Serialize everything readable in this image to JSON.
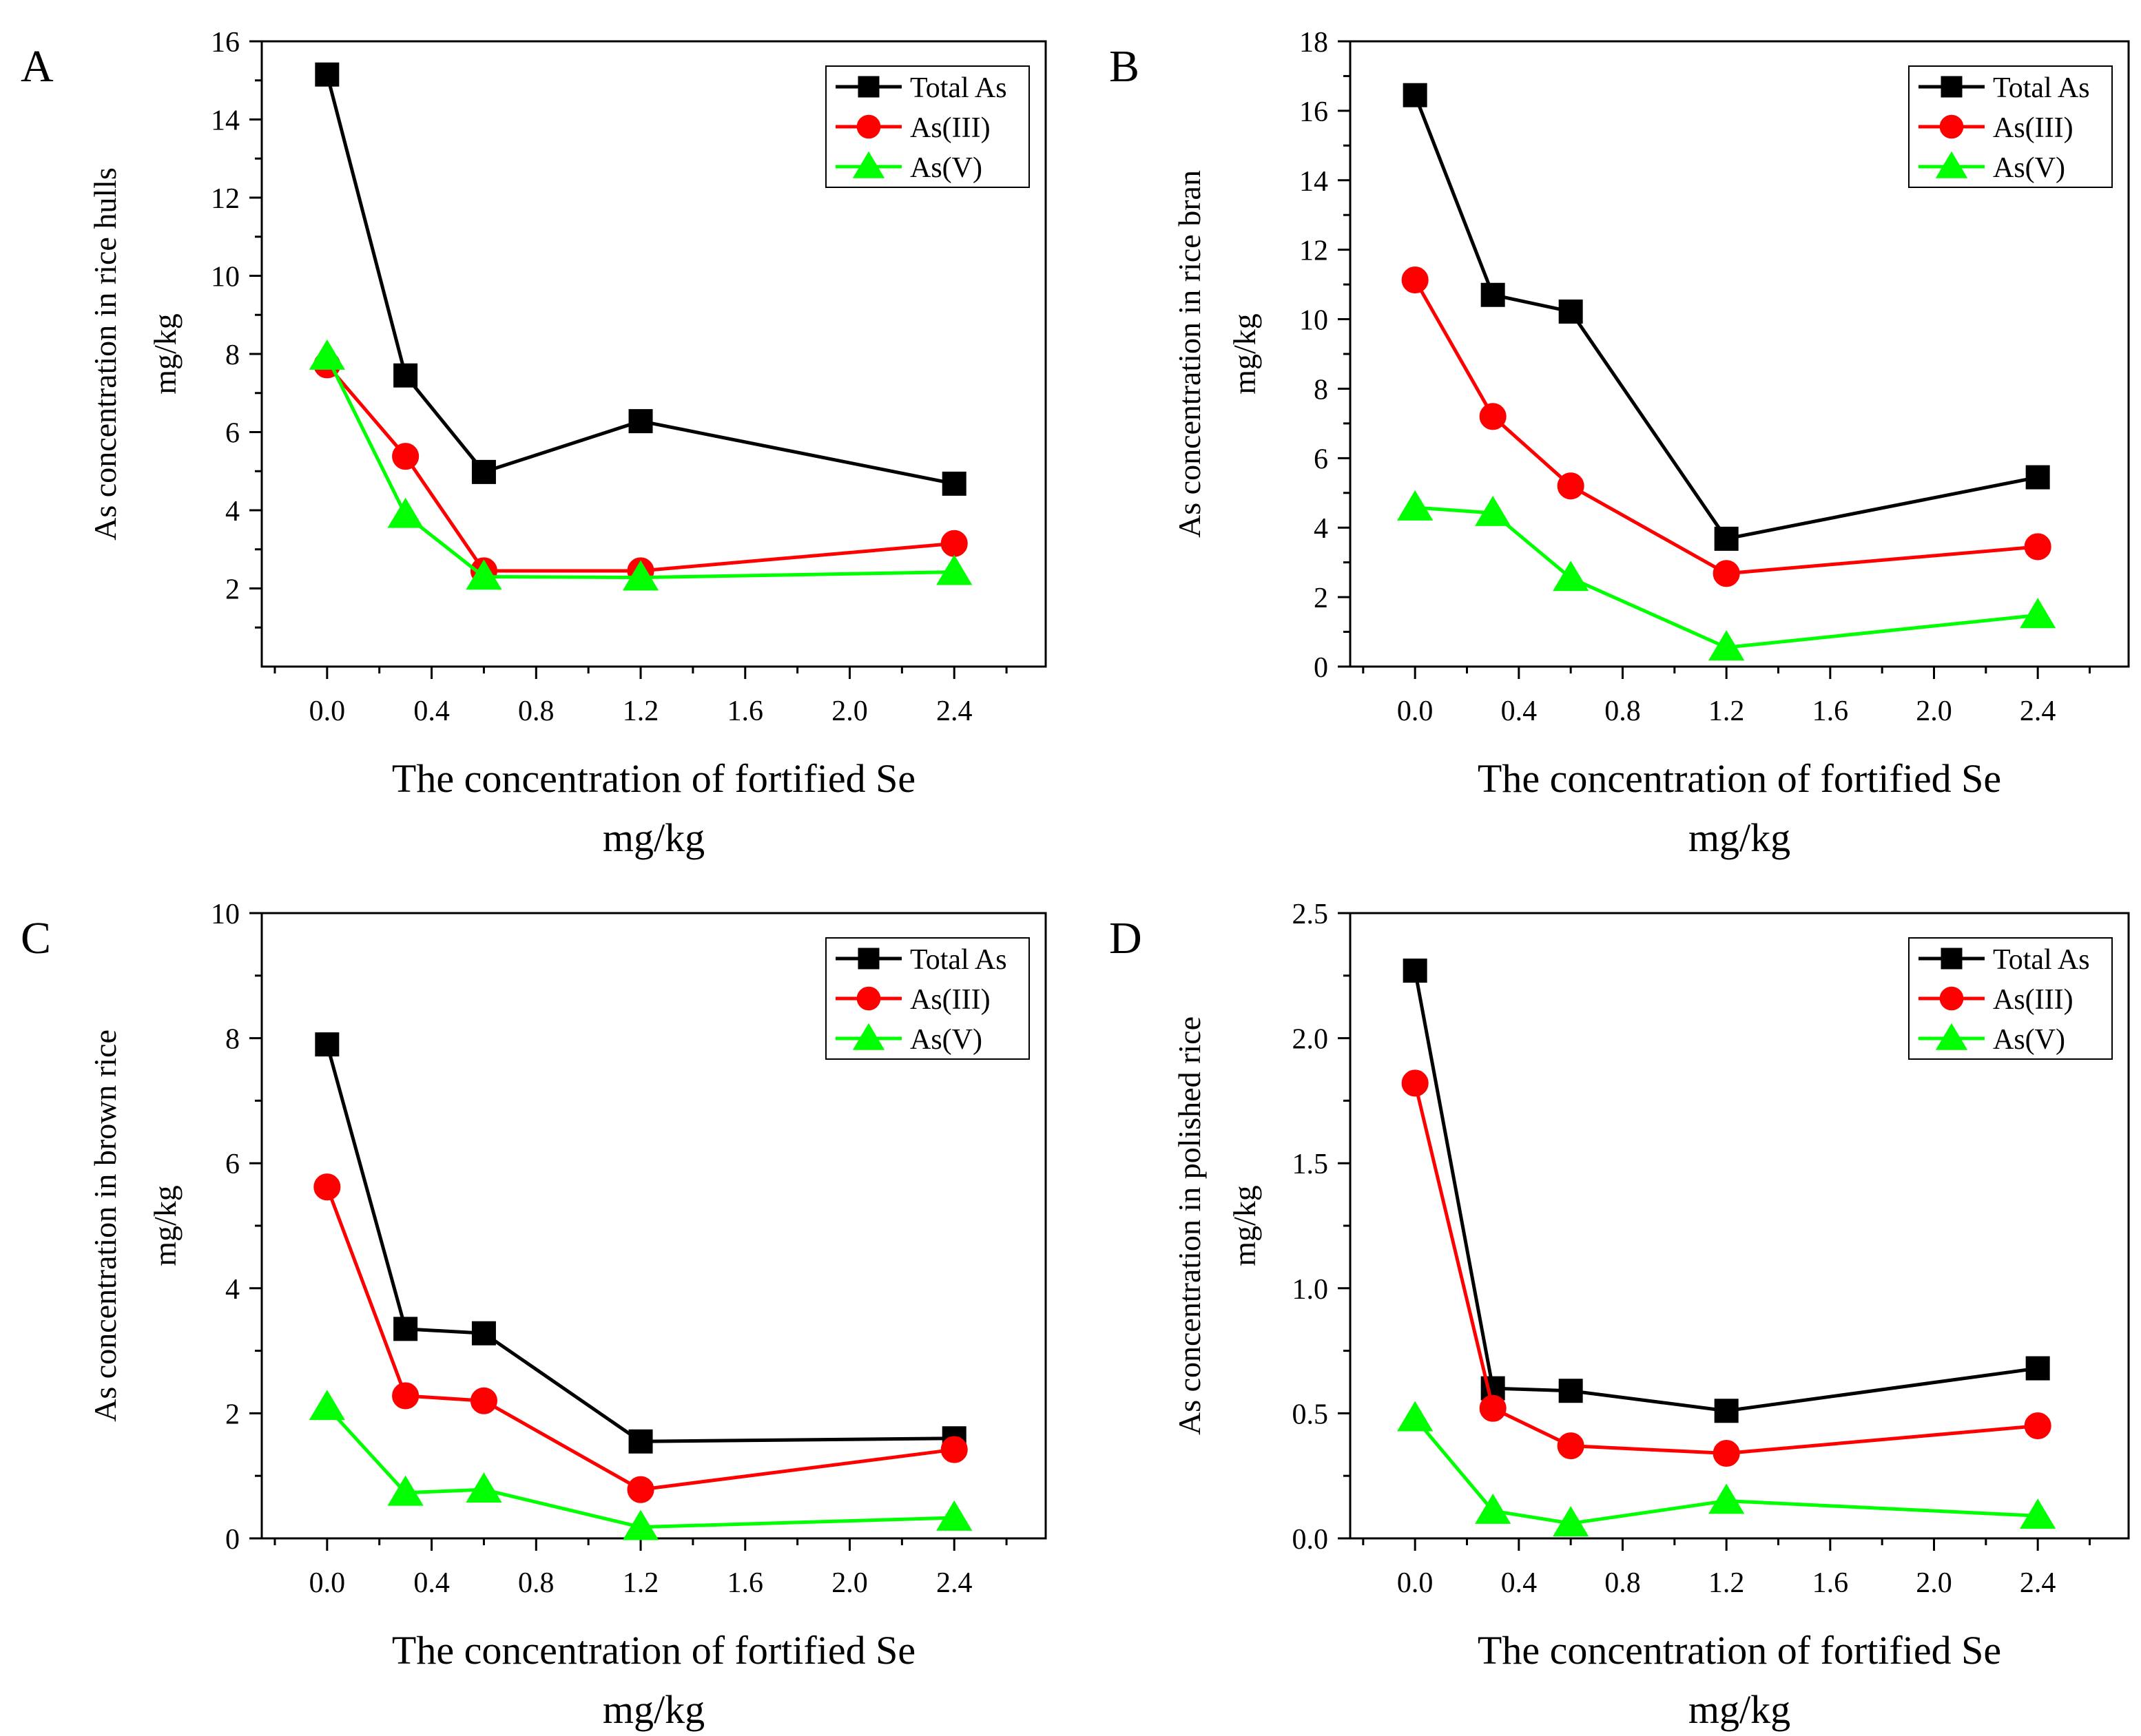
{
  "figure": {
    "x_title_line1": "The concentration of fortified Se",
    "x_title_line2": "mg/kg",
    "y_unit": "mg/kg"
  },
  "legend": {
    "total": "Total As",
    "as3": "As(III)",
    "as5": "As(V)"
  },
  "colors": {
    "total": "#000000",
    "as3": "#ff0000",
    "as5": "#00ff00"
  },
  "chart_data": [
    {
      "type": "line",
      "panel": "A",
      "ylabel": "As concentration in rice hulls",
      "xlabel": "The concentration of fortified Se mg/kg",
      "xlim": [
        -0.25,
        2.75
      ],
      "xticks": [
        "0.0",
        "0.4",
        "0.8",
        "1.2",
        "1.6",
        "2.0",
        "2.4"
      ],
      "ylim": [
        0,
        16
      ],
      "yticks": [
        "2",
        "4",
        "6",
        "8",
        "10",
        "12",
        "14",
        "16"
      ],
      "x": [
        0,
        0.3,
        0.6,
        1.2,
        2.4
      ],
      "series": [
        {
          "name": "Total As",
          "values": [
            15.15,
            7.45,
            4.98,
            6.28,
            4.68
          ]
        },
        {
          "name": "As(III)",
          "values": [
            7.72,
            5.38,
            2.45,
            2.45,
            3.15
          ]
        },
        {
          "name": "As(V)",
          "values": [
            7.93,
            3.88,
            2.3,
            2.28,
            2.42
          ]
        }
      ],
      "legend_position": "top-right"
    },
    {
      "type": "line",
      "panel": "B",
      "ylabel": "As concentration in rice bran",
      "xlabel": "The concentration of fortified Se mg/kg",
      "xlim": [
        -0.25,
        2.75
      ],
      "xticks": [
        "0.0",
        "0.4",
        "0.8",
        "1.2",
        "1.6",
        "2.0",
        "2.4"
      ],
      "ylim": [
        0,
        18
      ],
      "yticks": [
        "0",
        "2",
        "4",
        "6",
        "8",
        "10",
        "12",
        "14",
        "16",
        "18"
      ],
      "x": [
        0,
        0.3,
        0.6,
        1.2,
        2.4
      ],
      "series": [
        {
          "name": "Total As",
          "values": [
            16.45,
            10.7,
            10.22,
            3.68,
            5.45
          ]
        },
        {
          "name": "As(III)",
          "values": [
            11.13,
            7.2,
            5.2,
            2.68,
            3.45
          ]
        },
        {
          "name": "As(V)",
          "values": [
            4.58,
            4.42,
            2.55,
            0.55,
            1.48
          ]
        }
      ],
      "legend_position": "top-right"
    },
    {
      "type": "line",
      "panel": "C",
      "ylabel": "As concentration in brown rice",
      "xlabel": "The concentration of fortified Se mg/kg",
      "xlim": [
        -0.25,
        2.75
      ],
      "xticks": [
        "0.0",
        "0.4",
        "0.8",
        "1.2",
        "1.6",
        "2.0",
        "2.4"
      ],
      "ylim": [
        0,
        10
      ],
      "yticks": [
        "0",
        "2",
        "4",
        "6",
        "8",
        "10"
      ],
      "x": [
        0,
        0.3,
        0.6,
        1.2,
        2.4
      ],
      "series": [
        {
          "name": "Total As",
          "values": [
            7.9,
            3.35,
            3.28,
            1.55,
            1.6
          ]
        },
        {
          "name": "As(III)",
          "values": [
            5.62,
            2.28,
            2.2,
            0.78,
            1.42
          ]
        },
        {
          "name": "As(V)",
          "values": [
            2.1,
            0.73,
            0.78,
            0.18,
            0.33
          ]
        }
      ],
      "legend_position": "top-right"
    },
    {
      "type": "line",
      "panel": "D",
      "ylabel": "As concentration in polished rice",
      "xlabel": "The concentration of fortified Se mg/kg",
      "xlim": [
        -0.25,
        2.75
      ],
      "xticks": [
        "0.0",
        "0.4",
        "0.8",
        "1.2",
        "1.6",
        "2.0",
        "2.4"
      ],
      "ylim": [
        0,
        2.5
      ],
      "yticks": [
        "0.0",
        "0.5",
        "1.0",
        "1.5",
        "2.0",
        "2.5"
      ],
      "x": [
        0,
        0.3,
        0.6,
        1.2,
        2.4
      ],
      "series": [
        {
          "name": "Total As",
          "values": [
            2.27,
            0.6,
            0.59,
            0.51,
            0.68
          ]
        },
        {
          "name": "As(III)",
          "values": [
            1.82,
            0.52,
            0.37,
            0.34,
            0.45
          ]
        },
        {
          "name": "As(V)",
          "values": [
            0.48,
            0.11,
            0.06,
            0.15,
            0.09
          ]
        }
      ],
      "legend_position": "top-right"
    }
  ]
}
